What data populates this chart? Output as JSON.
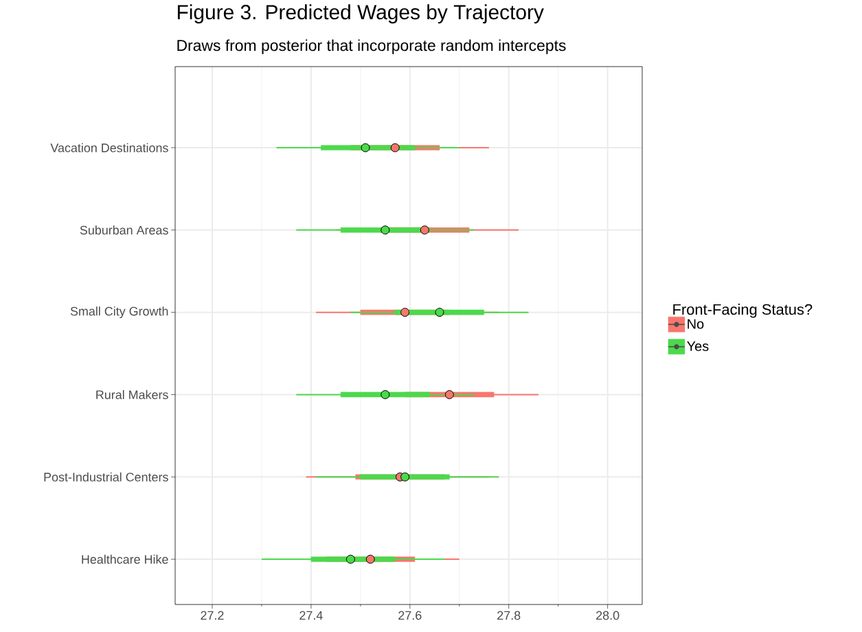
{
  "chart_data": {
    "type": "box",
    "orientation": "horizontal",
    "title": "Figure 3. Predicted Wages by Trajectory",
    "subtitle": "Draws from posterior that incorporate random intercepts",
    "legend_title": "Front-Facing Status?",
    "categories": [
      "Vacation Destinations",
      "Suburban Areas",
      "Small City Growth",
      "Rural Makers",
      "Post-Industrial Centers",
      "Healthcare Hike"
    ],
    "xlim": [
      27.125,
      28.07
    ],
    "xticks": [
      27.2,
      27.4,
      27.6,
      27.8,
      {
        "value": 28,
        "label": "28.0"
      }
    ],
    "grid": true,
    "legend": "right",
    "series": [
      {
        "name": "No",
        "color": "#f8766d",
        "boxes": [
          {
            "low": 27.38,
            "q1": 27.48,
            "median": 27.57,
            "q3": 27.66,
            "high": 27.76
          },
          {
            "low": 27.45,
            "q1": 27.54,
            "median": 27.63,
            "q3": 27.72,
            "high": 27.82
          },
          {
            "low": 27.41,
            "q1": 27.5,
            "median": 27.59,
            "q3": 27.68,
            "high": 27.78
          },
          {
            "low": 27.49,
            "q1": 27.59,
            "median": 27.68,
            "q3": 27.77,
            "high": 27.86
          },
          {
            "low": 27.39,
            "q1": 27.49,
            "median": 27.58,
            "q3": 27.67,
            "high": 27.76
          },
          {
            "low": 27.34,
            "q1": 27.43,
            "median": 27.52,
            "q3": 27.61,
            "high": 27.7
          }
        ]
      },
      {
        "name": "Yes",
        "color": "#4cd94c",
        "boxes": [
          {
            "low": 27.33,
            "q1": 27.42,
            "median": 27.51,
            "q3": 27.61,
            "high": 27.7
          },
          {
            "low": 27.37,
            "q1": 27.46,
            "median": 27.55,
            "q3": 27.64,
            "high": 27.73
          },
          {
            "low": 27.48,
            "q1": 27.57,
            "median": 27.66,
            "q3": 27.75,
            "high": 27.84
          },
          {
            "low": 27.37,
            "q1": 27.46,
            "median": 27.55,
            "q3": 27.64,
            "high": 27.73
          },
          {
            "low": 27.41,
            "q1": 27.5,
            "median": 27.59,
            "q3": 27.68,
            "high": 27.78
          },
          {
            "low": 27.3,
            "q1": 27.4,
            "median": 27.48,
            "q3": 27.57,
            "high": 27.67
          }
        ]
      }
    ]
  }
}
